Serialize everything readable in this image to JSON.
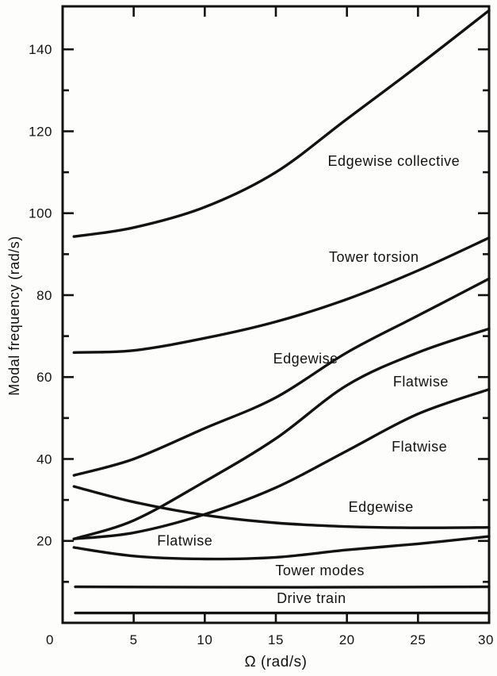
{
  "figure": {
    "background_color": "#fdfdfc",
    "ink_color": "#121212"
  },
  "chart_data": {
    "type": "line",
    "title": "",
    "xlabel": "Ω (rad/s)",
    "ylabel": "Modal frequency (rad/s)",
    "xlim": [
      0,
      30
    ],
    "ylim": [
      0,
      150.5
    ],
    "grid": false,
    "frame": "full box with inward tick marks on all four sides",
    "legend_position": "none (curves labeled inline)",
    "x_ticks_labeled": [
      0,
      5,
      10,
      15,
      20,
      25,
      30
    ],
    "x_ticks_marked": [
      5,
      10,
      15,
      20,
      25
    ],
    "y_ticks_labeled": [
      20,
      40,
      60,
      80,
      100,
      120,
      140
    ],
    "y_ticks_minor": [
      10,
      30,
      50,
      70,
      90,
      110,
      130
    ],
    "series": [
      {
        "name": "Edgewise collective",
        "points": [
          [
            0.8,
            94.3
          ],
          [
            5,
            96.5
          ],
          [
            10,
            101.5
          ],
          [
            15,
            110
          ],
          [
            20,
            123
          ],
          [
            25,
            136
          ],
          [
            30,
            149.5
          ]
        ]
      },
      {
        "name": "Tower torsion",
        "points": [
          [
            0.8,
            66.0
          ],
          [
            5,
            66.5
          ],
          [
            10,
            69.5
          ],
          [
            15,
            73.5
          ],
          [
            20,
            79
          ],
          [
            25,
            86
          ],
          [
            30,
            94
          ]
        ]
      },
      {
        "name": "Edgewise (rising)",
        "points": [
          [
            0.8,
            36.0
          ],
          [
            5,
            40
          ],
          [
            10,
            47.5
          ],
          [
            15,
            55
          ],
          [
            20,
            66
          ],
          [
            25,
            75
          ],
          [
            30,
            84
          ]
        ]
      },
      {
        "name": "Flatwise (upper)",
        "points": [
          [
            0.8,
            20.5
          ],
          [
            5,
            25
          ],
          [
            10,
            34.5
          ],
          [
            15,
            45
          ],
          [
            20,
            58
          ],
          [
            25,
            66
          ],
          [
            30,
            71.8
          ]
        ]
      },
      {
        "name": "Flatwise (middle)",
        "points": [
          [
            0.8,
            20.5
          ],
          [
            5,
            22
          ],
          [
            10,
            26.5
          ],
          [
            15,
            33
          ],
          [
            20,
            42
          ],
          [
            25,
            51
          ],
          [
            30,
            57
          ]
        ]
      },
      {
        "name": "Edgewise (descending)",
        "points": [
          [
            0.8,
            33.3
          ],
          [
            5,
            29.5
          ],
          [
            10,
            26.3
          ],
          [
            15,
            24.4
          ],
          [
            20,
            23.5
          ],
          [
            25,
            23.2
          ],
          [
            30,
            23.3
          ]
        ]
      },
      {
        "name": "Flatwise (lower, dipping)",
        "points": [
          [
            0.8,
            18.4
          ],
          [
            5,
            16.3
          ],
          [
            10,
            15.6
          ],
          [
            15,
            16.0
          ],
          [
            20,
            17.8
          ],
          [
            25,
            19.3
          ],
          [
            30,
            21.1
          ]
        ]
      },
      {
        "name": "Tower modes",
        "points": [
          [
            0.9,
            8.8
          ],
          [
            10,
            8.7
          ],
          [
            20,
            8.7
          ],
          [
            30,
            8.8
          ]
        ]
      },
      {
        "name": "Drive train",
        "points": [
          [
            0.9,
            2.4
          ],
          [
            10,
            2.4
          ],
          [
            20,
            2.4
          ],
          [
            30,
            2.4
          ]
        ]
      }
    ],
    "annotations": [
      {
        "text": "Edgewise collective",
        "x": 23.3,
        "y": 112.7
      },
      {
        "text": "Tower torsion",
        "x": 21.9,
        "y": 89.3
      },
      {
        "text": "Edgewise",
        "x": 17.1,
        "y": 64.5
      },
      {
        "text": "Flatwise",
        "x": 25.2,
        "y": 58.9
      },
      {
        "text": "Flatwise",
        "x": 25.1,
        "y": 43.0
      },
      {
        "text": "Edgewise",
        "x": 22.4,
        "y": 28.3
      },
      {
        "text": "Flatwise",
        "x": 8.6,
        "y": 20.0
      },
      {
        "text": "Tower modes",
        "x": 18.1,
        "y": 12.8
      },
      {
        "text": "Drive train",
        "x": 17.5,
        "y": 6.0
      }
    ]
  }
}
